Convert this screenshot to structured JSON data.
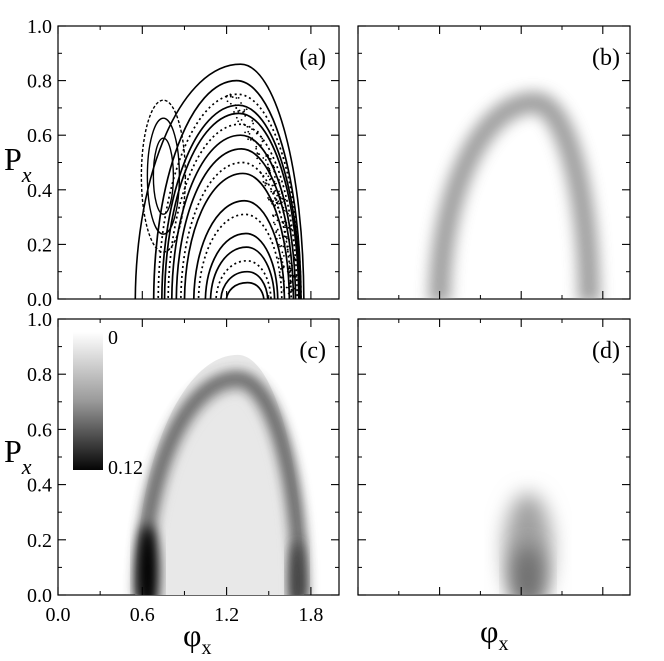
{
  "chart_data": {
    "type": "heatmap",
    "xlabel": "φx",
    "ylabel": "Px",
    "xlim": [
      0.0,
      2.0
    ],
    "ylim": [
      0.0,
      1.0
    ],
    "x_ticks": [
      "0.0",
      "0.6",
      "1.2",
      "1.8"
    ],
    "y_ticks": [
      "0.0",
      "0.2",
      "0.4",
      "0.6",
      "0.8",
      "1.0"
    ],
    "colorbar": {
      "max_label": "0",
      "min_label": "0.12",
      "range": [
        0,
        0.12
      ]
    },
    "panels": [
      {
        "label": "(a)",
        "kind": "phase-portrait",
        "outer_boundary": {
          "x_left": 0.55,
          "x_right": 1.75,
          "p_top": 0.86,
          "peak_x": 1.3
        },
        "center_x": 1.35,
        "nested_orbit_heights": [
          0.06,
          0.1,
          0.14,
          0.19,
          0.24,
          0.31,
          0.36,
          0.46,
          0.5,
          0.55,
          0.6,
          0.64,
          0.68,
          0.71,
          0.75,
          0.8
        ],
        "island": {
          "x": 0.75,
          "p": 0.45
        }
      },
      {
        "label": "(b)",
        "kind": "density",
        "peak_value": 0.04,
        "arch": {
          "x_left": 0.55,
          "x_right": 1.75,
          "p_top": 0.77
        }
      },
      {
        "label": "(c)",
        "kind": "density",
        "peak_value": 0.12,
        "arch": {
          "x_left": 0.55,
          "x_right": 1.75,
          "p_top": 0.87
        }
      },
      {
        "label": "(d)",
        "kind": "density",
        "peak_value": 0.06,
        "blob": {
          "x": 1.25,
          "p_low": 0.0,
          "p_high": 0.5
        }
      }
    ]
  }
}
